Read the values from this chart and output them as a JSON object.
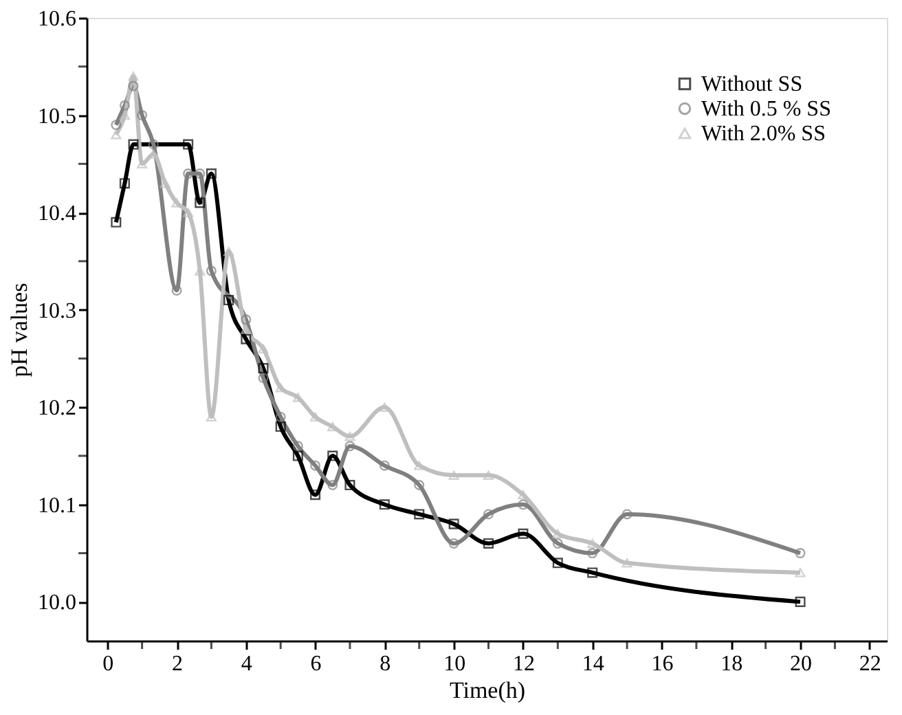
{
  "chart_data": {
    "type": "line",
    "xlabel": "Time(h)",
    "ylabel": "pH values",
    "xlim": [
      -0.6,
      22.5
    ],
    "ylim": [
      9.96,
      10.6
    ],
    "xticks": [
      0,
      {
        "value": 1,
        "label": null
      },
      2,
      {
        "value": 3,
        "label": null
      },
      4,
      {
        "value": 5,
        "label": null
      },
      6,
      {
        "value": 7,
        "label": null
      },
      8,
      {
        "value": 9,
        "label": null
      },
      10,
      {
        "value": 11,
        "label": null
      },
      12,
      {
        "value": 13,
        "label": null
      },
      14,
      {
        "value": 15,
        "label": null
      },
      16,
      {
        "value": 17,
        "label": null
      },
      18,
      {
        "value": 19,
        "label": null
      },
      20,
      {
        "value": 21,
        "label": null
      },
      22
    ],
    "yticks": [
      {
        "value": 10.0,
        "label": "10.0"
      },
      {
        "value": 10.05,
        "label": null
      },
      {
        "value": 10.1,
        "label": "10.1"
      },
      {
        "value": 10.15,
        "label": null
      },
      {
        "value": 10.2,
        "label": "10.2"
      },
      {
        "value": 10.25,
        "label": null
      },
      {
        "value": 10.3,
        "label": "10.3"
      },
      {
        "value": 10.35,
        "label": null
      },
      {
        "value": 10.4,
        "label": "10.4"
      },
      {
        "value": 10.45,
        "label": null
      },
      {
        "value": 10.5,
        "label": "10.5"
      },
      {
        "value": 10.55,
        "label": null
      },
      {
        "value": 10.6,
        "label": "10.6"
      }
    ],
    "grid": false,
    "legend": "top right",
    "line_style": "solid",
    "series": [
      {
        "name": "Without SS",
        "color": "#000000",
        "marker": "square",
        "x": [
          0.25,
          0.5,
          0.75,
          2.33,
          2.67,
          3,
          3.5,
          4,
          4.5,
          5,
          5.5,
          6,
          6.5,
          7,
          8,
          9,
          10,
          11,
          12,
          13,
          14,
          20
        ],
        "values": [
          10.39,
          10.43,
          10.47,
          10.47,
          10.41,
          10.44,
          10.31,
          10.27,
          10.24,
          10.18,
          10.15,
          10.11,
          10.15,
          10.12,
          10.1,
          10.09,
          10.08,
          10.06,
          10.07,
          10.04,
          10.03,
          10.0
        ]
      },
      {
        "name": "With 0.5 % SS",
        "color": "#808080",
        "marker": "circle",
        "x": [
          0.25,
          0.5,
          0.75,
          1,
          1.33,
          2,
          2.33,
          2.67,
          3,
          4,
          4.5,
          5,
          5.5,
          6,
          6.5,
          7,
          8,
          9,
          10,
          11,
          12,
          13,
          14,
          15,
          20
        ],
        "values": [
          10.49,
          10.51,
          10.53,
          10.5,
          10.47,
          10.32,
          10.44,
          10.44,
          10.34,
          10.29,
          10.23,
          10.19,
          10.16,
          10.14,
          10.12,
          10.16,
          10.14,
          10.12,
          10.06,
          10.09,
          10.1,
          10.06,
          10.05,
          10.09,
          10.05
        ]
      },
      {
        "name": "With 2.0% SS",
        "color": "#bfbfbf",
        "marker": "triangle",
        "x": [
          0.25,
          0.5,
          0.75,
          1,
          1.33,
          1.67,
          2,
          2.33,
          2.67,
          3,
          3.5,
          4,
          4.5,
          5,
          5.5,
          6,
          6.5,
          7,
          8,
          9,
          10,
          11,
          12,
          13,
          14,
          15,
          20
        ],
        "values": [
          10.48,
          10.5,
          10.54,
          10.45,
          10.46,
          10.43,
          10.41,
          10.4,
          10.34,
          10.19,
          10.36,
          10.28,
          10.26,
          10.22,
          10.21,
          10.19,
          10.18,
          10.17,
          10.2,
          10.14,
          10.13,
          10.13,
          10.11,
          10.07,
          10.06,
          10.04,
          10.03
        ]
      }
    ]
  }
}
